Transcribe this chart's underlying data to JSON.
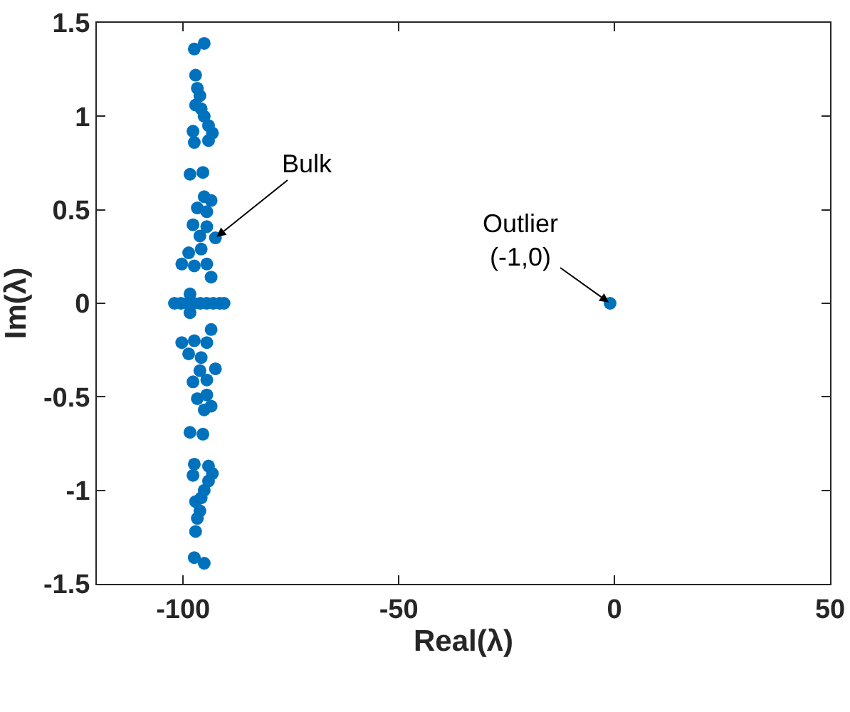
{
  "chart_data": {
    "type": "scatter",
    "xlabel": "Real(λ)",
    "ylabel": "Im(λ)",
    "marker": "circle",
    "grid": false,
    "legend": false,
    "xlim": [
      -120,
      50
    ],
    "xticks": [
      -100,
      -50,
      0,
      50
    ],
    "ylim": [
      -1.5,
      1.5
    ],
    "yticks": [
      -1.5,
      -1,
      -0.5,
      0,
      0.5,
      1,
      1.5
    ],
    "series": [
      {
        "color": "#0072bd",
        "x": [
          -97.4,
          -95.1,
          -97.1,
          -96.7,
          -96.1,
          -97.1,
          -95.8,
          -95.1,
          -94.1,
          -97.7,
          -93.2,
          -97.4,
          -94.1,
          -98.4,
          -95.4,
          -95.1,
          -93.5,
          -96.7,
          -94.5,
          -97.7,
          -94.5,
          -96.1,
          -92.5,
          -95.8,
          -98.7,
          -100.3,
          -97.4,
          -94.5,
          -93.5,
          -98.4,
          -97.4,
          -95.1,
          -97.1,
          -96.7,
          -96.1,
          -97.1,
          -95.8,
          -95.1,
          -94.1,
          -97.7,
          -93.2,
          -97.4,
          -94.1,
          -98.4,
          -95.4,
          -95.1,
          -93.5,
          -96.7,
          -94.5,
          -97.7,
          -94.5,
          -96.1,
          -92.5,
          -95.8,
          -98.7,
          -100.3,
          -97.4,
          -94.5,
          -93.5,
          -98.4,
          -102,
          -100.5,
          -99,
          -97.5,
          -96,
          -94.5,
          -93,
          -91.5,
          -90.5,
          -1
        ],
        "values": [
          1.36,
          1.39,
          1.22,
          1.15,
          1.11,
          1.06,
          1.04,
          1.0,
          0.95,
          0.92,
          0.91,
          0.86,
          0.87,
          0.69,
          0.7,
          0.57,
          0.55,
          0.51,
          0.49,
          0.42,
          0.41,
          0.36,
          0.35,
          0.29,
          0.27,
          0.21,
          0.2,
          0.21,
          0.14,
          0.05,
          -1.36,
          -1.39,
          -1.22,
          -1.15,
          -1.11,
          -1.06,
          -1.04,
          -1.0,
          -0.95,
          -0.92,
          -0.91,
          -0.86,
          -0.87,
          -0.69,
          -0.7,
          -0.57,
          -0.55,
          -0.51,
          -0.49,
          -0.42,
          -0.41,
          -0.36,
          -0.35,
          -0.29,
          -0.27,
          -0.21,
          -0.2,
          -0.21,
          -0.14,
          -0.05,
          0,
          0,
          0,
          0,
          0,
          0,
          0,
          0,
          0,
          0
        ]
      }
    ],
    "annotations": [
      {
        "text": "Bulk",
        "x": -92.5,
        "y": 0.35
      },
      {
        "text": "Outlier\n(-1,0)",
        "x": -1,
        "y": 0
      }
    ]
  }
}
